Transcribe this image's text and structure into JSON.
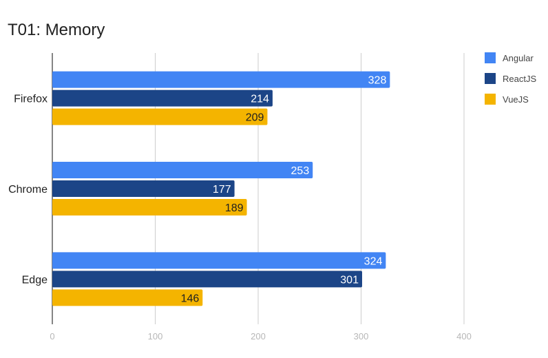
{
  "chart_data": {
    "type": "bar",
    "orientation": "horizontal",
    "title": "T01: Memory",
    "xlabel": "",
    "ylabel": "",
    "categories": [
      "Firefox",
      "Chrome",
      "Edge"
    ],
    "series": [
      {
        "name": "Angular",
        "values": [
          328,
          253,
          324
        ],
        "color": "#4285f4",
        "label_color": "#ffffff"
      },
      {
        "name": "ReactJS",
        "values": [
          214,
          177,
          301
        ],
        "color": "#1c4587",
        "label_color": "#ffffff"
      },
      {
        "name": "VueJS",
        "values": [
          209,
          189,
          146
        ],
        "color": "#f4b400",
        "label_color": "#212121"
      }
    ],
    "xlim": [
      0,
      400
    ],
    "ticks": [
      0,
      100,
      200,
      300,
      400
    ],
    "grid": true,
    "legend_position": "right"
  }
}
